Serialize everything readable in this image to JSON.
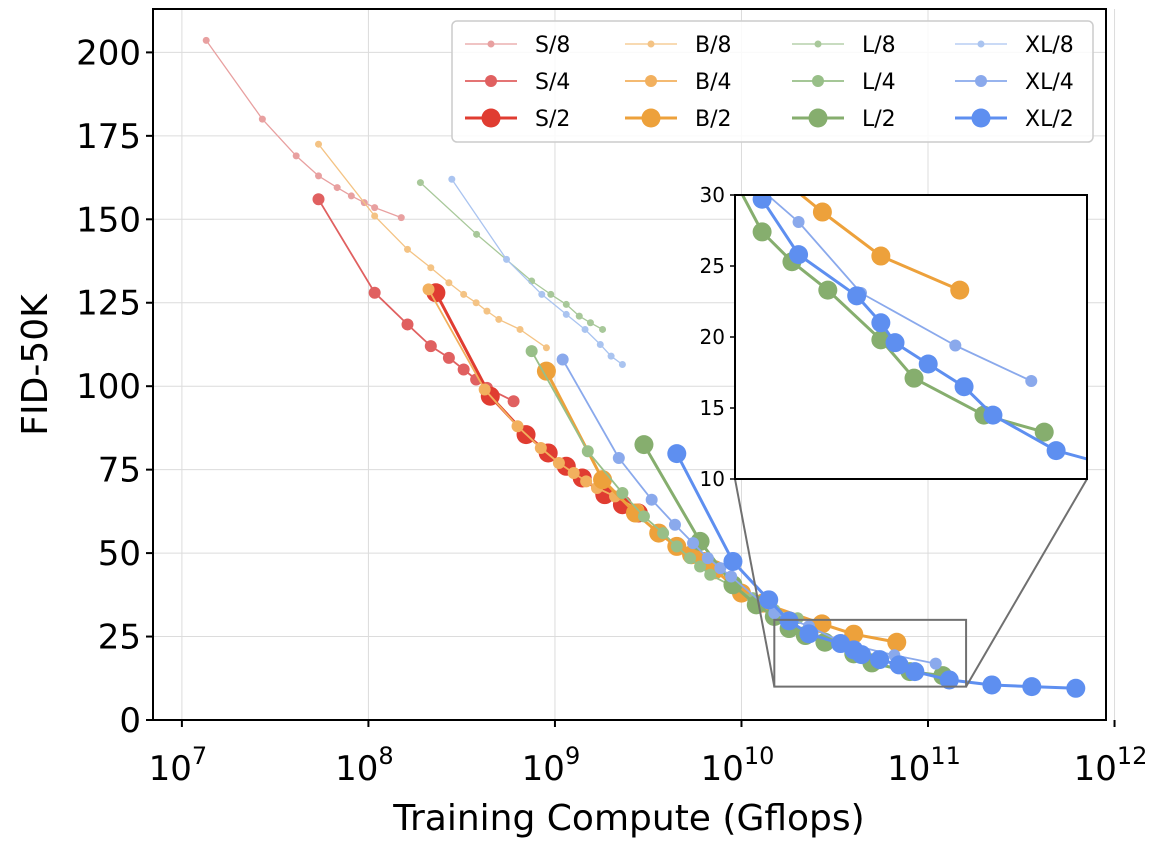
{
  "chart_data": {
    "type": "line",
    "xscale": "log",
    "xlabel": "Training Compute (Gflops)",
    "ylabel": "FID-50K",
    "xlim": [
      7000000.0,
      900000000000.0
    ],
    "ylim": [
      0,
      213
    ],
    "yticks": [
      {
        "value": 0,
        "label": "0"
      },
      {
        "value": 25,
        "label": "25"
      },
      {
        "value": 50,
        "label": "50"
      },
      {
        "value": 75,
        "label": "75"
      },
      {
        "value": 100,
        "label": "100"
      },
      {
        "value": 125,
        "label": "125"
      },
      {
        "value": 150,
        "label": "150"
      },
      {
        "value": 175,
        "label": "175"
      },
      {
        "value": 200,
        "label": "200"
      }
    ],
    "xticks": [
      {
        "value": 10000000.0,
        "base": "10",
        "exp": "7"
      },
      {
        "value": 100000000.0,
        "base": "10",
        "exp": "8"
      },
      {
        "value": 1000000000.0,
        "base": "10",
        "exp": "9"
      },
      {
        "value": 10000000000.0,
        "base": "10",
        "exp": "10"
      },
      {
        "value": 100000000000.0,
        "base": "10",
        "exp": "11"
      },
      {
        "value": 1000000000000.0,
        "base": "10",
        "exp": "12"
      }
    ],
    "legend_position": "top-right",
    "series": [
      {
        "name": "S/8",
        "color": "#e8a0a0",
        "size": "small",
        "points": [
          [
            13500000.0,
            203.6
          ],
          [
            27000000.0,
            180
          ],
          [
            41000000.0,
            169
          ],
          [
            54000000.0,
            163
          ],
          [
            68000000.0,
            159.5
          ],
          [
            81000000.0,
            157
          ],
          [
            95000000.0,
            155
          ],
          [
            108000000.0,
            153.5
          ],
          [
            150000000.0,
            150.5
          ]
        ]
      },
      {
        "name": "S/4",
        "color": "#e06060",
        "size": "medium",
        "points": [
          [
            54000000.0,
            156
          ],
          [
            108000000.0,
            128
          ],
          [
            162000000.0,
            118.5
          ],
          [
            216000000.0,
            112
          ],
          [
            270000000.0,
            108.5
          ],
          [
            324000000.0,
            105
          ],
          [
            378000000.0,
            102
          ],
          [
            432000000.0,
            99.5
          ],
          [
            600000000.0,
            95.5
          ]
        ]
      },
      {
        "name": "S/2",
        "color": "#e03c31",
        "size": "large",
        "points": [
          [
            230000000.0,
            128
          ],
          [
            450000000.0,
            97
          ],
          [
            700000000.0,
            85.5
          ],
          [
            920000000.0,
            80
          ],
          [
            1150000000.0,
            76
          ],
          [
            1400000000.0,
            72.5
          ],
          [
            1850000000.0,
            67.5
          ],
          [
            2300000000.0,
            64.5
          ],
          [
            2800000000.0,
            62
          ]
        ]
      },
      {
        "name": "B/8",
        "color": "#f4c384",
        "size": "small",
        "points": [
          [
            54000000.0,
            172.5
          ],
          [
            108000000.0,
            151
          ],
          [
            162000000.0,
            141
          ],
          [
            216000000.0,
            135.5
          ],
          [
            270000000.0,
            131
          ],
          [
            324000000.0,
            127.5
          ],
          [
            378000000.0,
            125
          ],
          [
            432000000.0,
            122.5
          ],
          [
            500000000.0,
            120
          ],
          [
            650000000.0,
            117
          ],
          [
            900000000.0,
            111.5
          ]
        ]
      },
      {
        "name": "B/4",
        "color": "#f2b05e",
        "size": "medium",
        "points": [
          [
            210000000.0,
            129
          ],
          [
            420000000.0,
            99
          ],
          [
            630000000.0,
            88
          ],
          [
            840000000.0,
            81.5
          ],
          [
            1050000000.0,
            77
          ],
          [
            1260000000.0,
            74
          ],
          [
            1470000000.0,
            71.5
          ],
          [
            1680000000.0,
            69.5
          ],
          [
            2100000000.0,
            67
          ],
          [
            2800000000.0,
            63
          ]
        ]
      },
      {
        "name": "B/2",
        "color": "#eda13b",
        "size": "large",
        "points": [
          [
            900000000.0,
            104.5
          ],
          [
            1800000000.0,
            72
          ],
          [
            2700000000.0,
            62
          ],
          [
            3600000000.0,
            56
          ],
          [
            4500000000.0,
            52
          ],
          [
            5400000000.0,
            49.5
          ],
          [
            6300000000.0,
            47.5
          ],
          [
            7200000000.0,
            45
          ],
          [
            10000000000.0,
            38
          ],
          [
            13000000000.0,
            35
          ],
          [
            27000000000.0,
            28.8
          ],
          [
            40000000000.0,
            25.7
          ],
          [
            68000000000.0,
            23.3
          ]
        ]
      },
      {
        "name": "L/8",
        "color": "#a8c89a",
        "size": "small",
        "points": [
          [
            190000000.0,
            161
          ],
          [
            380000000.0,
            145.5
          ],
          [
            750000000.0,
            131.5
          ],
          [
            950000000.0,
            127.5
          ],
          [
            1150000000.0,
            124.5
          ],
          [
            1350000000.0,
            121
          ],
          [
            1550000000.0,
            119
          ],
          [
            1800000000.0,
            117
          ]
        ]
      },
      {
        "name": "L/4",
        "color": "#98bf88",
        "size": "medium",
        "points": [
          [
            750000000.0,
            110.5
          ],
          [
            1500000000.0,
            80.5
          ],
          [
            2300000000.0,
            68
          ],
          [
            3000000000.0,
            61
          ],
          [
            3800000000.0,
            56
          ],
          [
            4500000000.0,
            52
          ],
          [
            5300000000.0,
            48.5
          ],
          [
            6000000000.0,
            46
          ],
          [
            6800000000.0,
            43.5
          ],
          [
            9000000000.0,
            40
          ],
          [
            11500000000.0,
            36.5
          ],
          [
            15000000000.0,
            33
          ],
          [
            20000000000.0,
            30.5
          ]
        ]
      },
      {
        "name": "L/2",
        "color": "#86ae6e",
        "size": "large",
        "points": [
          [
            3000000000.0,
            82.5
          ],
          [
            6000000000.0,
            53.5
          ],
          [
            9000000000.0,
            40.5
          ],
          [
            12000000000.0,
            34.5
          ],
          [
            15000000000.0,
            31
          ],
          [
            18000000000.0,
            27.4
          ],
          [
            22000000000.0,
            25.3
          ],
          [
            28000000000.0,
            23.3
          ],
          [
            40000000000.0,
            19.8
          ],
          [
            50000000000.0,
            17.1
          ],
          [
            80000000000.0,
            14.5
          ],
          [
            120000000000.0,
            13.3
          ]
        ]
      },
      {
        "name": "XL/8",
        "color": "#aac4f0",
        "size": "small",
        "points": [
          [
            280000000.0,
            162
          ],
          [
            550000000.0,
            138
          ],
          [
            850000000.0,
            127.5
          ],
          [
            1150000000.0,
            121.5
          ],
          [
            1450000000.0,
            117
          ],
          [
            1750000000.0,
            112.5
          ],
          [
            2000000000.0,
            109
          ],
          [
            2300000000.0,
            106.5
          ]
        ]
      },
      {
        "name": "XL/4",
        "color": "#8aa9ec",
        "size": "medium",
        "points": [
          [
            1100000000.0,
            108
          ],
          [
            2200000000.0,
            78.5
          ],
          [
            3300000000.0,
            66
          ],
          [
            4400000000.0,
            58.5
          ],
          [
            5500000000.0,
            53
          ],
          [
            6600000000.0,
            48.5
          ],
          [
            7700000000.0,
            45.5
          ],
          [
            8800000000.0,
            43
          ],
          [
            15000000000.0,
            32
          ],
          [
            23000000000.0,
            28.1
          ],
          [
            35000000000.0,
            23.1
          ],
          [
            66000000000.0,
            19.4
          ],
          [
            110000000000.0,
            16.9
          ]
        ]
      },
      {
        "name": "XL/2",
        "color": "#5e8ff0",
        "size": "large",
        "points": [
          [
            4500000000.0,
            79.8
          ],
          [
            9000000000.0,
            47.5
          ],
          [
            14000000000.0,
            36
          ],
          [
            18000000000.0,
            29.7
          ],
          [
            23000000000.0,
            25.8
          ],
          [
            34000000000.0,
            22.9
          ],
          [
            40000000000.0,
            21
          ],
          [
            44000000000.0,
            19.6
          ],
          [
            55000000000.0,
            18.1
          ],
          [
            70000000000.0,
            16.5
          ],
          [
            85000000000.0,
            14.5
          ],
          [
            130000000000.0,
            12
          ],
          [
            220000000000.0,
            10.5
          ],
          [
            360000000000.0,
            10
          ],
          [
            620000000000.0,
            9.5
          ]
        ]
      }
    ],
    "inset": {
      "xlim": [
        15000000000.0,
        160000000000.0
      ],
      "ylim": [
        10,
        30
      ],
      "yticks": [
        {
          "value": 10,
          "label": "10"
        },
        {
          "value": 15,
          "label": "15"
        },
        {
          "value": 20,
          "label": "20"
        },
        {
          "value": 25,
          "label": "25"
        },
        {
          "value": 30,
          "label": "30"
        }
      ]
    }
  }
}
